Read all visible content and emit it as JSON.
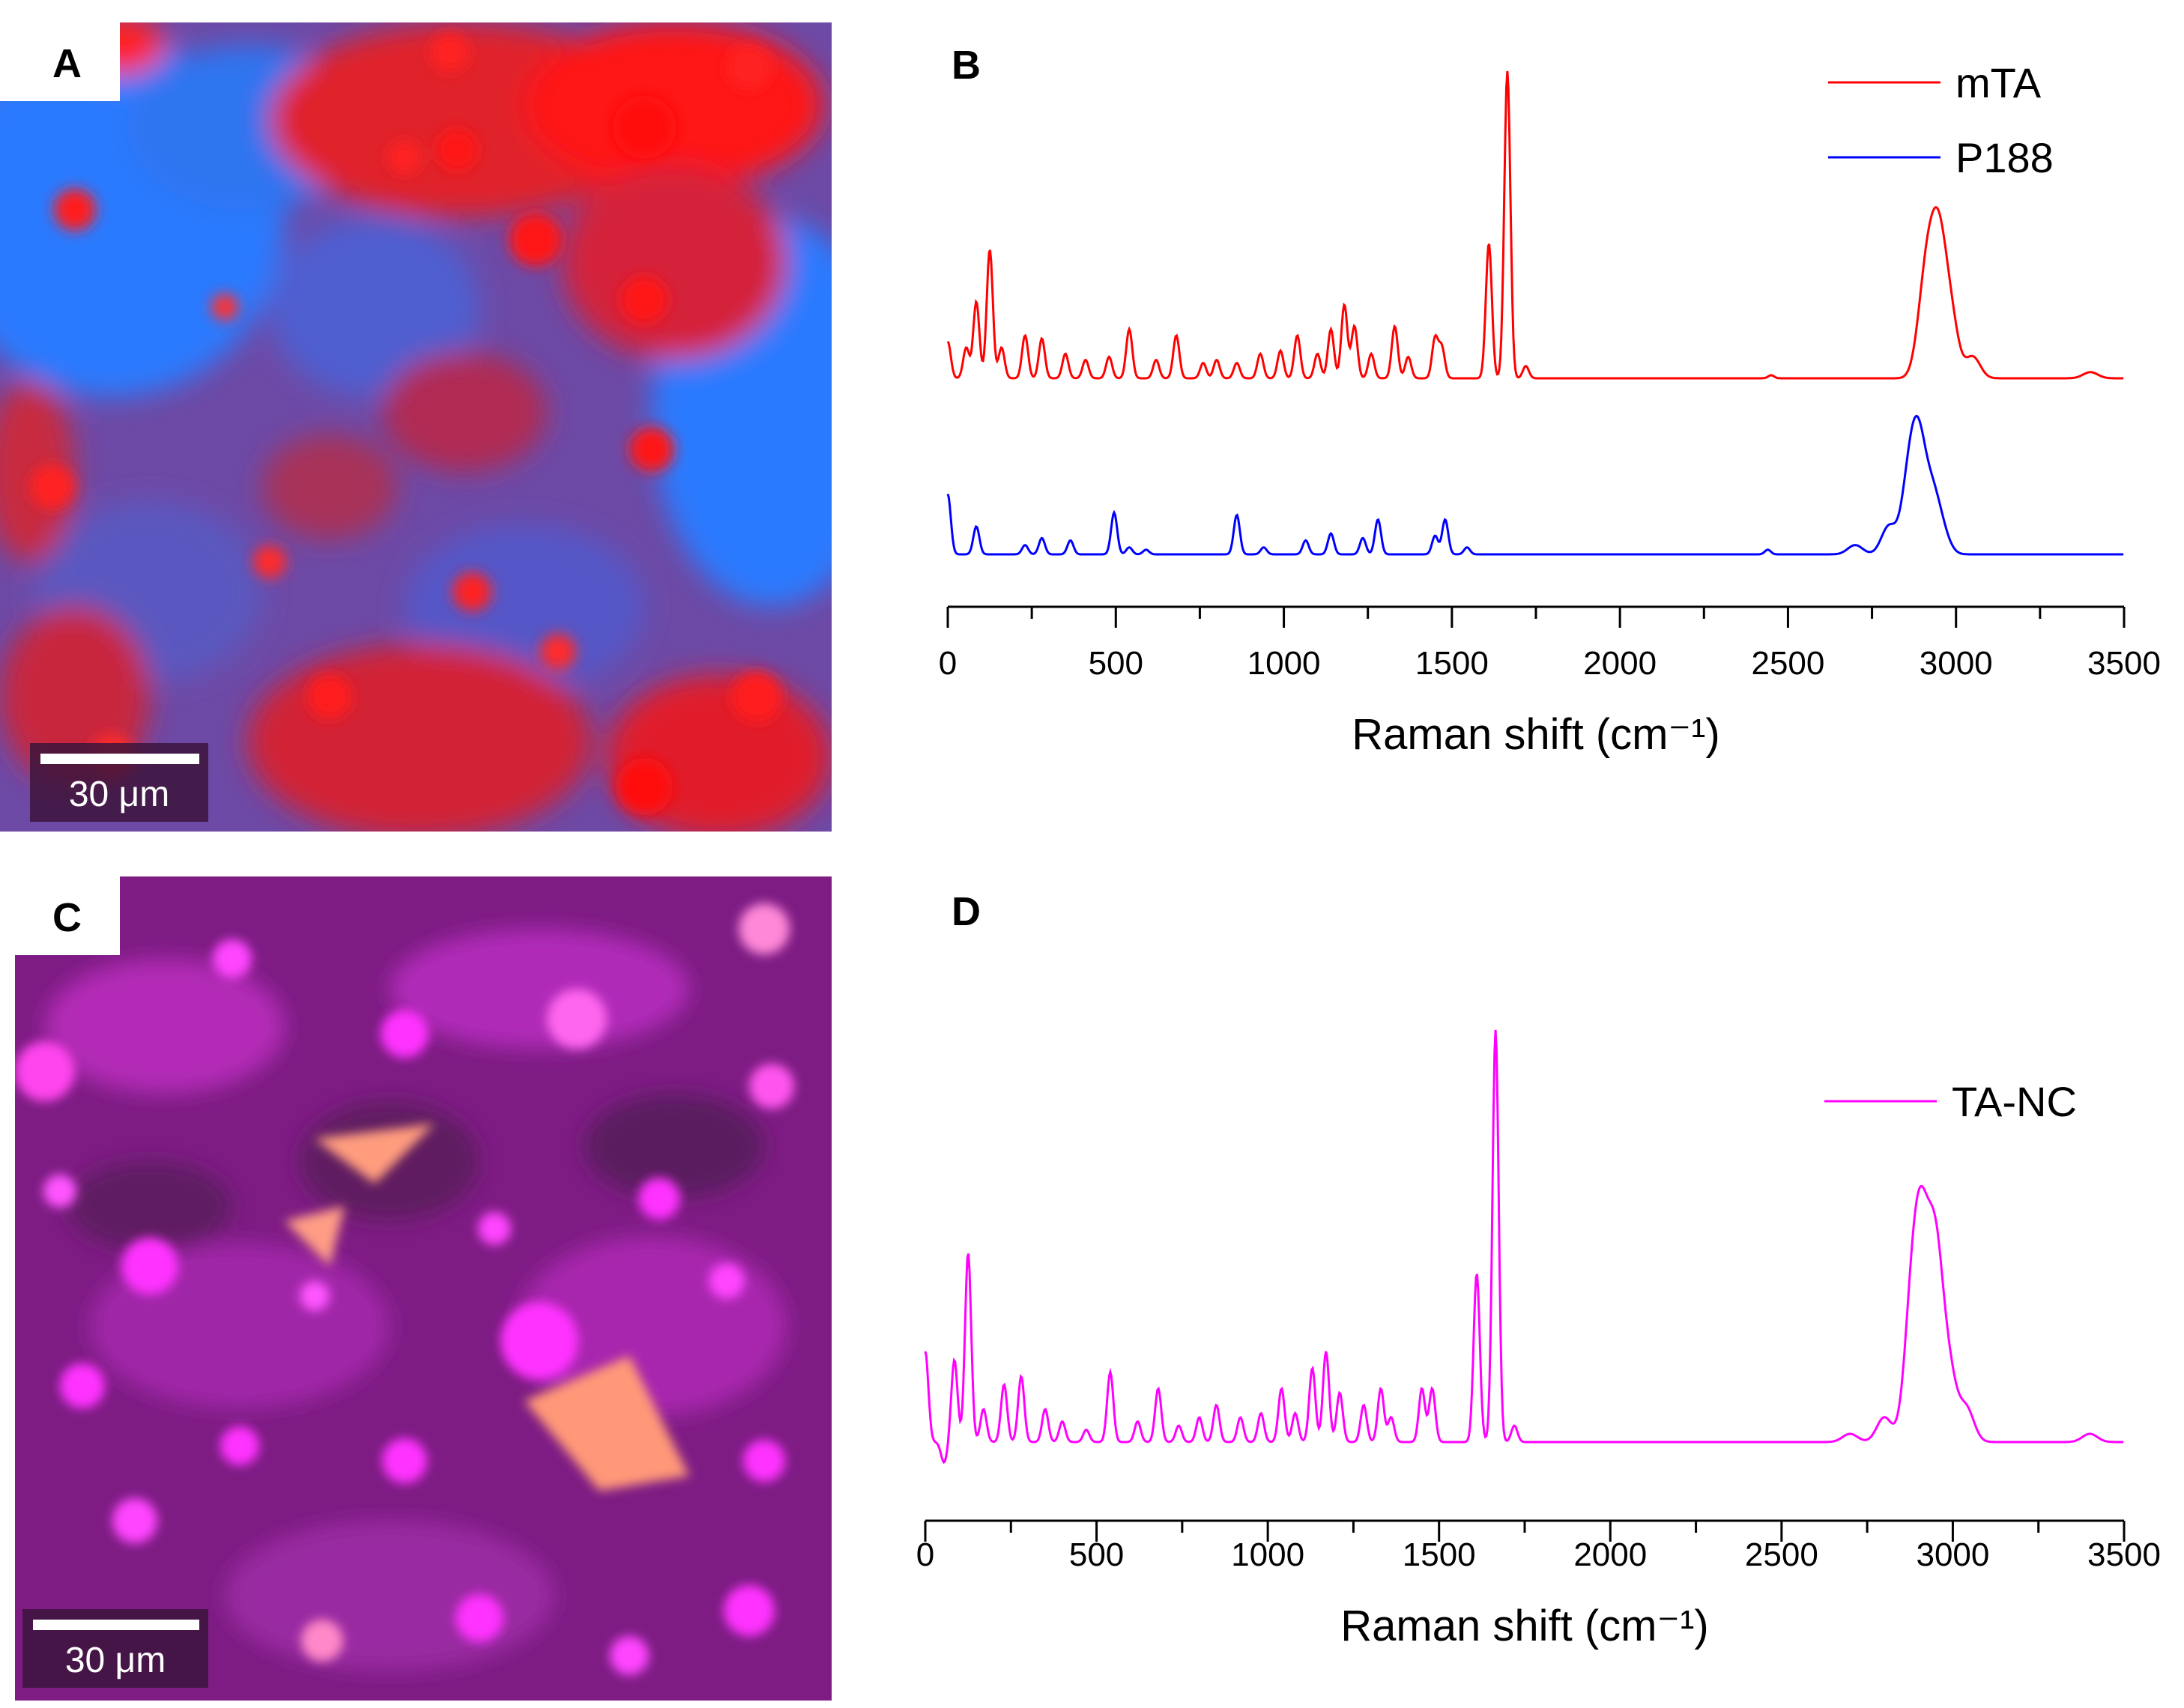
{
  "panel_a": {
    "letter": "A",
    "scale_bar": "30 μm",
    "colors": {
      "base": "#6a4aa8",
      "mta": "#ff1a1a",
      "p188": "#2a78ff"
    }
  },
  "panel_c": {
    "letter": "C",
    "scale_bar": "30 μm",
    "colors": {
      "base": "#7a1a7e",
      "particles": "#ff33ff",
      "crystals": "#ff9a7a"
    }
  },
  "chart_data": [
    {
      "type": "line",
      "panel_letter": "B",
      "xlabel": "Raman shift (cm⁻¹)",
      "xlim": [
        0,
        3500
      ],
      "xticks": [
        0,
        500,
        1000,
        1500,
        2000,
        2500,
        3000,
        3500
      ],
      "xtick_labels": [
        "0",
        "500",
        "1000",
        "1500",
        "2000",
        "2500",
        "3000",
        "3500"
      ],
      "yaxis_visible": false,
      "series": [
        {
          "name": "mTA",
          "color": "#ff0000",
          "baseline": 0.0,
          "peaks": [
            [
              0,
              0.12
            ],
            [
              55,
              0.1
            ],
            [
              85,
              0.25
            ],
            [
              125,
              0.42
            ],
            [
              160,
              0.1
            ],
            [
              230,
              0.14
            ],
            [
              280,
              0.13
            ],
            [
              350,
              0.08
            ],
            [
              410,
              0.06
            ],
            [
              480,
              0.07
            ],
            [
              540,
              0.16
            ],
            [
              620,
              0.06
            ],
            [
              680,
              0.14
            ],
            [
              760,
              0.05
            ],
            [
              800,
              0.06
            ],
            [
              860,
              0.05
            ],
            [
              930,
              0.08
            ],
            [
              990,
              0.09
            ],
            [
              1040,
              0.14
            ],
            [
              1100,
              0.08
            ],
            [
              1140,
              0.16
            ],
            [
              1180,
              0.24
            ],
            [
              1210,
              0.17
            ],
            [
              1260,
              0.08
            ],
            [
              1330,
              0.17
            ],
            [
              1370,
              0.07
            ],
            [
              1450,
              0.13
            ],
            [
              1470,
              0.1
            ],
            [
              1610,
              0.44
            ],
            [
              1665,
              1.0
            ],
            [
              1720,
              0.04
            ],
            [
              2450,
              0.01
            ],
            [
              2900,
              0.14
            ],
            [
              2920,
              0.25
            ],
            [
              2950,
              0.38
            ],
            [
              2985,
              0.18
            ],
            [
              3050,
              0.07
            ],
            [
              3400,
              0.02
            ]
          ],
          "offset": 1.0
        },
        {
          "name": "P188",
          "color": "#0000ff",
          "baseline": 0.0,
          "peaks": [
            [
              0,
              0.26
            ],
            [
              85,
              0.12
            ],
            [
              230,
              0.04
            ],
            [
              280,
              0.07
            ],
            [
              365,
              0.06
            ],
            [
              495,
              0.18
            ],
            [
              540,
              0.03
            ],
            [
              590,
              0.02
            ],
            [
              860,
              0.17
            ],
            [
              940,
              0.03
            ],
            [
              1065,
              0.06
            ],
            [
              1140,
              0.09
            ],
            [
              1235,
              0.07
            ],
            [
              1280,
              0.15
            ],
            [
              1450,
              0.08
            ],
            [
              1480,
              0.15
            ],
            [
              1545,
              0.03
            ],
            [
              2440,
              0.02
            ],
            [
              2700,
              0.04
            ],
            [
              2800,
              0.12
            ],
            [
              2860,
              0.3
            ],
            [
              2890,
              0.42
            ],
            [
              2930,
              0.22
            ],
            [
              2960,
              0.08
            ]
          ],
          "offset": 0.0
        }
      ],
      "legend": [
        "mTA",
        "P188"
      ],
      "legend_position": "top-right"
    },
    {
      "type": "line",
      "panel_letter": "D",
      "xlabel": "Raman shift (cm⁻¹)",
      "xlim": [
        0,
        3500
      ],
      "xticks": [
        0,
        500,
        1000,
        1500,
        2000,
        2500,
        3000,
        3500
      ],
      "xtick_labels": [
        "0",
        "500",
        "1000",
        "1500",
        "2000",
        "2500",
        "3000",
        "3500"
      ],
      "yaxis_visible": false,
      "series": [
        {
          "name": "TA-NC",
          "color": "#ff00ff",
          "baseline": 0.0,
          "peaks": [
            [
              0,
              0.22
            ],
            [
              55,
              -0.05
            ],
            [
              85,
              0.2
            ],
            [
              125,
              0.46
            ],
            [
              170,
              0.08
            ],
            [
              230,
              0.14
            ],
            [
              280,
              0.16
            ],
            [
              350,
              0.08
            ],
            [
              400,
              0.05
            ],
            [
              470,
              0.03
            ],
            [
              540,
              0.17
            ],
            [
              620,
              0.05
            ],
            [
              680,
              0.13
            ],
            [
              740,
              0.04
            ],
            [
              800,
              0.06
            ],
            [
              850,
              0.09
            ],
            [
              920,
              0.06
            ],
            [
              980,
              0.07
            ],
            [
              1040,
              0.13
            ],
            [
              1080,
              0.07
            ],
            [
              1130,
              0.18
            ],
            [
              1170,
              0.22
            ],
            [
              1210,
              0.12
            ],
            [
              1280,
              0.09
            ],
            [
              1330,
              0.13
            ],
            [
              1360,
              0.06
            ],
            [
              1450,
              0.13
            ],
            [
              1480,
              0.13
            ],
            [
              1610,
              0.41
            ],
            [
              1665,
              1.0
            ],
            [
              1720,
              0.04
            ],
            [
              2700,
              0.02
            ],
            [
              2800,
              0.06
            ],
            [
              2880,
              0.3
            ],
            [
              2910,
              0.42
            ],
            [
              2950,
              0.43
            ],
            [
              2990,
              0.15
            ],
            [
              3040,
              0.08
            ],
            [
              3400,
              0.02
            ]
          ],
          "offset": 0.0
        }
      ],
      "legend": [
        "TA-NC"
      ],
      "legend_position": "right"
    }
  ]
}
